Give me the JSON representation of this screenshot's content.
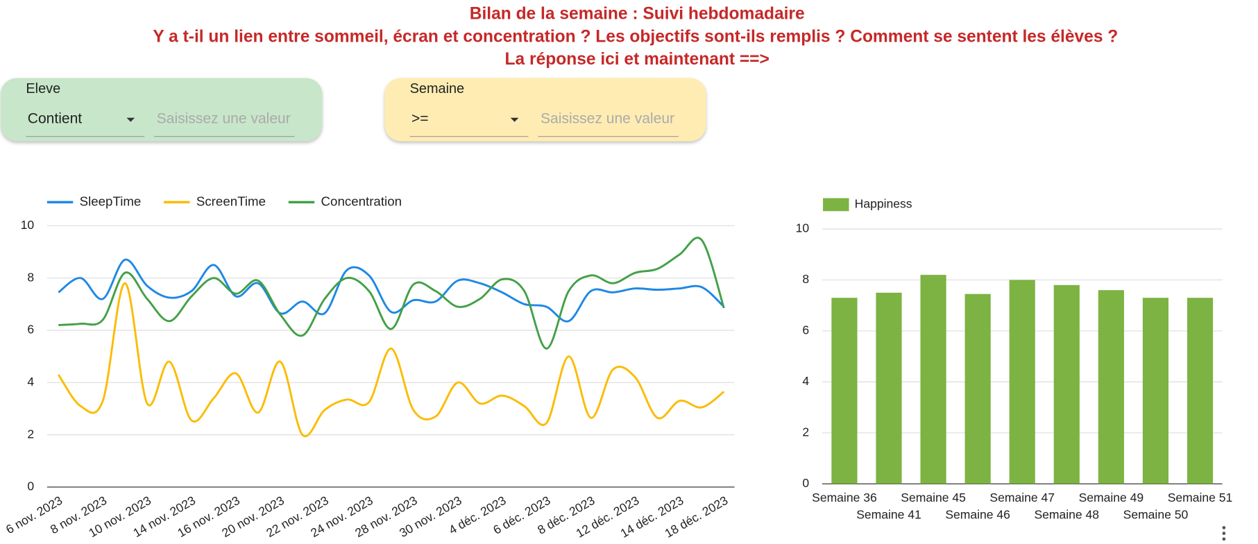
{
  "header": {
    "title": "Bilan de la semaine : Suivi hebdomadaire",
    "subtitle": "Y a t-il un lien entre sommeil, écran et concentration ? Les objectifs sont-ils remplis ? Comment se sentent les élèves ?",
    "cta": "La réponse ici et maintenant ==>"
  },
  "filters": [
    {
      "label": "Eleve",
      "operator": "Contient",
      "placeholder": "Saisissez une valeur",
      "color": "#c8e6c9"
    },
    {
      "label": "Semaine",
      "operator": ">=",
      "placeholder": "Saisissez une valeur",
      "color": "#ffecb3"
    }
  ],
  "chart_data": [
    {
      "type": "line",
      "categories": [
        "6 nov. 2023",
        null,
        "8 nov. 2023",
        null,
        "10 nov. 2023",
        null,
        "14 nov. 2023",
        null,
        "16 nov. 2023",
        null,
        "20 nov. 2023",
        null,
        "22 nov. 2023",
        null,
        "24 nov. 2023",
        null,
        "28 nov. 2023",
        null,
        "30 nov. 2023",
        null,
        "4 déc. 2023",
        null,
        "6 déc. 2023",
        null,
        "8 déc. 2023",
        null,
        "12 déc. 2023",
        null,
        "14 déc. 2023",
        null,
        "18 déc. 2023"
      ],
      "series": [
        {
          "name": "SleepTime",
          "color": "#1e88e5",
          "values": [
            7.45,
            8.0,
            7.2,
            8.7,
            7.7,
            7.25,
            7.5,
            8.5,
            7.3,
            7.8,
            6.65,
            7.1,
            6.65,
            8.3,
            8.1,
            6.7,
            7.15,
            7.1,
            7.9,
            7.8,
            7.45,
            7.0,
            6.9,
            6.35,
            7.5,
            7.45,
            7.6,
            7.55,
            7.6,
            7.65,
            6.9
          ]
        },
        {
          "name": "ScreenTime",
          "color": "#fbbc04",
          "values": [
            4.3,
            3.1,
            3.3,
            7.8,
            3.2,
            4.8,
            2.55,
            3.4,
            4.35,
            2.85,
            4.8,
            2.0,
            2.95,
            3.35,
            3.25,
            5.3,
            2.95,
            2.7,
            4.0,
            3.2,
            3.5,
            3.1,
            2.45,
            5.0,
            2.65,
            4.5,
            4.2,
            2.65,
            3.3,
            3.05,
            3.65
          ]
        },
        {
          "name": "Concentration",
          "color": "#43a047",
          "values": [
            6.2,
            6.25,
            6.4,
            8.2,
            7.2,
            6.35,
            7.3,
            8.0,
            7.4,
            7.9,
            6.6,
            5.8,
            7.2,
            8.0,
            7.5,
            6.05,
            7.75,
            7.5,
            6.9,
            7.2,
            7.95,
            7.5,
            5.3,
            7.5,
            8.1,
            7.8,
            8.2,
            8.35,
            8.9,
            9.45,
            6.85
          ]
        }
      ],
      "ylim": [
        0,
        10
      ],
      "yticks": [
        0,
        2,
        4,
        6,
        8,
        10
      ],
      "grid": true,
      "legend": "top"
    },
    {
      "type": "bar",
      "categories": [
        "Semaine 36",
        "Semaine 41",
        "Semaine 45",
        "Semaine 46",
        "Semaine 47",
        "Semaine 48",
        "Semaine 49",
        "Semaine 50",
        "Semaine 51"
      ],
      "series": [
        {
          "name": "Happiness",
          "color": "#7cb342",
          "values": [
            7.3,
            7.5,
            8.2,
            7.45,
            8.0,
            7.8,
            7.6,
            7.3,
            7.3
          ]
        }
      ],
      "ylim": [
        0,
        10
      ],
      "yticks": [
        0,
        2,
        4,
        6,
        8,
        10
      ],
      "grid": true,
      "legend": "top"
    }
  ]
}
